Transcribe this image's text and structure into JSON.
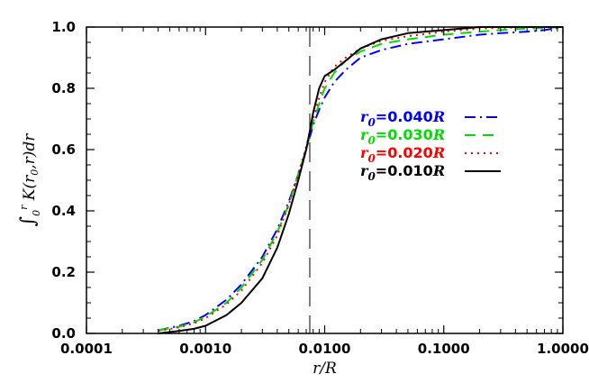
{
  "chart_data": {
    "type": "line",
    "xlabel": "r/R",
    "ylabel": "∫₀ʳ K(r₀,r) dr",
    "xscale": "log",
    "xlim": [
      0.0001,
      1.0
    ],
    "ylim": [
      0.0,
      1.0
    ],
    "x_ticks": [
      "0.0001",
      "0.0010",
      "0.0100",
      "0.1000",
      "1.0000"
    ],
    "y_ticks": [
      "0.0",
      "0.2",
      "0.4",
      "0.6",
      "0.8",
      "1.0"
    ],
    "vline": {
      "x": 0.0075,
      "style": "long-dash",
      "color": "#000000"
    },
    "legend_position": "center-right",
    "x": [
      0.0004,
      0.0006,
      0.0008,
      0.001,
      0.0015,
      0.002,
      0.003,
      0.004,
      0.005,
      0.006,
      0.007,
      0.0075,
      0.008,
      0.009,
      0.01,
      0.012,
      0.015,
      0.02,
      0.03,
      0.05,
      0.1,
      0.2,
      0.3,
      0.5,
      0.7,
      1.0
    ],
    "series": [
      {
        "name": "r0=0.040R",
        "color": "#0000ff",
        "dash": "dashdot",
        "values": [
          0.01,
          0.025,
          0.04,
          0.06,
          0.11,
          0.16,
          0.25,
          0.34,
          0.43,
          0.52,
          0.6,
          0.64,
          0.68,
          0.73,
          0.77,
          0.82,
          0.86,
          0.9,
          0.925,
          0.945,
          0.96,
          0.975,
          0.98,
          0.985,
          0.99,
          1.0
        ]
      },
      {
        "name": "r0=0.030R",
        "color": "#00dd00",
        "dash": "dash",
        "values": [
          0.01,
          0.022,
          0.036,
          0.055,
          0.1,
          0.15,
          0.24,
          0.33,
          0.42,
          0.52,
          0.6,
          0.645,
          0.69,
          0.75,
          0.8,
          0.85,
          0.89,
          0.92,
          0.945,
          0.96,
          0.975,
          0.985,
          0.99,
          0.995,
          0.997,
          1.0
        ]
      },
      {
        "name": "r0=0.020R",
        "color": "#ff0000",
        "dash": "dot",
        "values": [
          0.008,
          0.02,
          0.033,
          0.05,
          0.095,
          0.14,
          0.23,
          0.32,
          0.42,
          0.52,
          0.61,
          0.655,
          0.7,
          0.77,
          0.82,
          0.87,
          0.9,
          0.93,
          0.955,
          0.97,
          0.985,
          0.995,
          0.997,
          1.0,
          1.0,
          1.0
        ]
      },
      {
        "name": "r0=0.010R",
        "color": "#000000",
        "dash": "solid",
        "values": [
          0.0,
          0.008,
          0.015,
          0.025,
          0.06,
          0.1,
          0.18,
          0.28,
          0.39,
          0.5,
          0.6,
          0.66,
          0.72,
          0.8,
          0.84,
          0.86,
          0.89,
          0.93,
          0.96,
          0.98,
          0.99,
          1.0,
          1.0,
          1.0,
          1.0,
          1.0
        ]
      }
    ],
    "legend": [
      {
        "symbol": "r",
        "sub": "0",
        "text": "=0.040",
        "unit": "R",
        "color": "#0000ff"
      },
      {
        "symbol": "r",
        "sub": "0",
        "text": "=0.030",
        "unit": "R",
        "color": "#00dd00"
      },
      {
        "symbol": "r",
        "sub": "0",
        "text": "=0.020",
        "unit": "R",
        "color": "#ff0000"
      },
      {
        "symbol": "r",
        "sub": "0",
        "text": "=0.010",
        "unit": "R",
        "color": "#000000"
      }
    ]
  }
}
